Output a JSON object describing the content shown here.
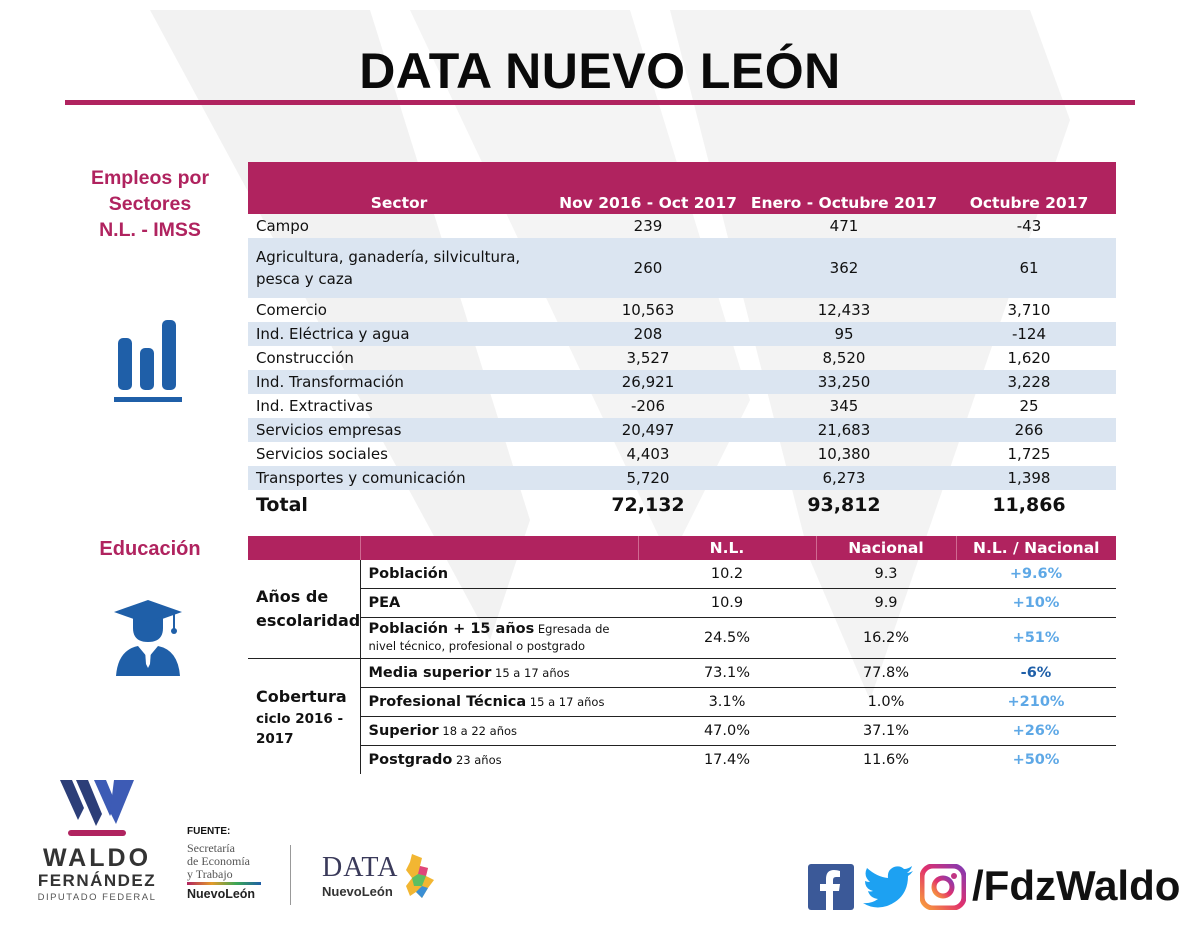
{
  "title": "DATA NUEVO LEÓN",
  "empleos": {
    "heading_lines": [
      "Empleos por",
      "Sectores",
      "N.L. - IMSS"
    ],
    "icon": "bar-chart-icon",
    "columns": [
      "Sector",
      "Nov 2016 - Oct 2017",
      "Enero - Octubre 2017",
      "Octubre  2017"
    ],
    "rows": [
      {
        "sector": "Campo",
        "nov_oct": "239",
        "ene_oct": "471",
        "oct": "-43"
      },
      {
        "sector": "Agricultura, ganadería, silvicultura, pesca y caza",
        "nov_oct": "260",
        "ene_oct": "362",
        "oct": "61"
      },
      {
        "sector": "Comercio",
        "nov_oct": "10,563",
        "ene_oct": "12,433",
        "oct": "3,710"
      },
      {
        "sector": "Ind. Eléctrica y agua",
        "nov_oct": "208",
        "ene_oct": "95",
        "oct": "-124"
      },
      {
        "sector": "Construcción",
        "nov_oct": "3,527",
        "ene_oct": "8,520",
        "oct": "1,620"
      },
      {
        "sector": "Ind. Transformación",
        "nov_oct": "26,921",
        "ene_oct": "33,250",
        "oct": "3,228"
      },
      {
        "sector": "Ind. Extractivas",
        "nov_oct": "-206",
        "ene_oct": "345",
        "oct": "25"
      },
      {
        "sector": "Servicios empresas",
        "nov_oct": "20,497",
        "ene_oct": "21,683",
        "oct": "266"
      },
      {
        "sector": "Servicios sociales",
        "nov_oct": "4,403",
        "ene_oct": "10,380",
        "oct": "1,725"
      },
      {
        "sector": "Transportes y comunicación",
        "nov_oct": "5,720",
        "ene_oct": "6,273",
        "oct": "1,398"
      }
    ],
    "total": {
      "label": "Total",
      "nov_oct": "72,132",
      "ene_oct": "93,812",
      "oct": "11,866"
    }
  },
  "educacion": {
    "heading": "Educación",
    "icon": "graduate-icon",
    "columns": [
      "",
      "",
      "N.L.",
      "Nacional",
      "N.L. / Nacional"
    ],
    "groups": [
      {
        "label_lines": [
          "Años de",
          "escolaridad"
        ],
        "rows": [
          {
            "label": "Población",
            "note": "",
            "nl": "10.2",
            "nacional": "9.3",
            "ratio": "+9.6%"
          },
          {
            "label": "PEA",
            "note": "",
            "nl": "10.9",
            "nacional": "9.9",
            "ratio": "+10%"
          },
          {
            "label": "Población + 15 años",
            "note": " Egresada de nivel técnico, profesional o postgrado",
            "nl": "24.5%",
            "nacional": "16.2%",
            "ratio": "+51%"
          }
        ]
      },
      {
        "label_lines": [
          "Cobertura",
          "ciclo 2016 -",
          "2017"
        ],
        "rows": [
          {
            "label": "Media superior",
            "note": " 15 a 17 años",
            "nl": "73.1%",
            "nacional": "77.8%",
            "ratio": "-6%"
          },
          {
            "label": "Profesional Técnica",
            "note": " 15  a 17 años",
            "nl": "3.1%",
            "nacional": "1.0%",
            "ratio": "+210%"
          },
          {
            "label": "Superior",
            "note": " 18 a 22 años",
            "nl": "47.0%",
            "nacional": "37.1%",
            "ratio": "+26%"
          },
          {
            "label": "Postgrado",
            "note": " 23 años",
            "nl": "17.4%",
            "nacional": "11.6%",
            "ratio": "+50%"
          }
        ]
      }
    ]
  },
  "footer": {
    "logo_name_1": "WALDO",
    "logo_name_2": "FERNÁNDEZ",
    "logo_sub": "DIPUTADO FEDERAL",
    "fuente_label": "FUENTE:",
    "source_lines": [
      "Secretaría",
      "de Economía",
      "y Trabajo"
    ],
    "source_brand": "NuevoLeón",
    "data_logo_top": "DATA",
    "data_logo_bottom": "NuevoLeón",
    "social_handle": "/FdzWaldo",
    "social_icons": [
      "facebook-icon",
      "twitter-icon",
      "instagram-icon"
    ]
  },
  "colors": {
    "accent": "#b0235f",
    "row_alt": "#dbe5f1",
    "icon_blue": "#1f5fa8",
    "pct_blue": "#5ea8e6",
    "navy": "#2c3e78"
  }
}
